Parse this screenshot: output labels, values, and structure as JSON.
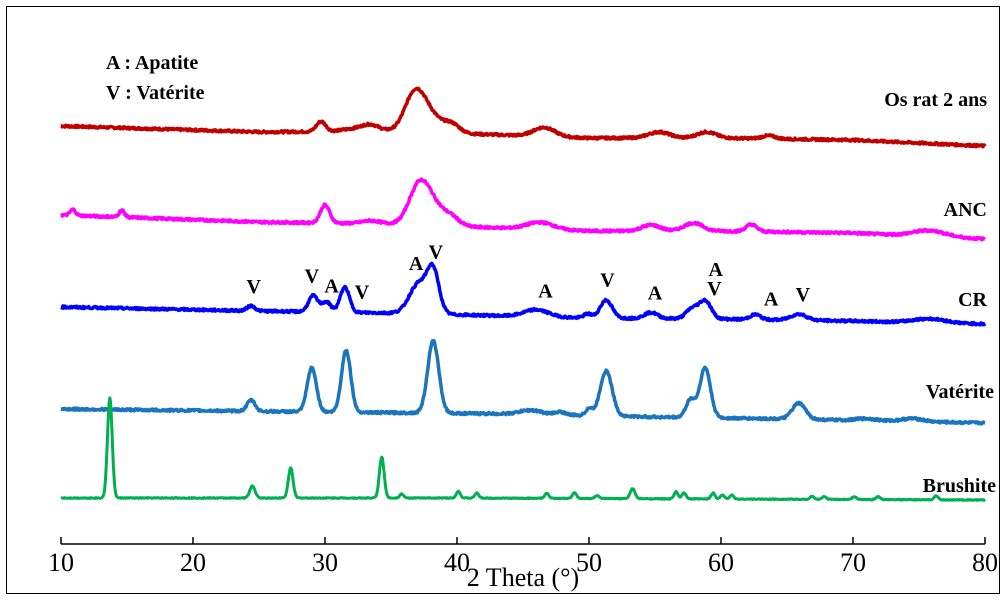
{
  "chart_data": {
    "type": "line",
    "title": "",
    "xlabel": "2 Theta (°)",
    "ylabel": "",
    "xlim": [
      10,
      80
    ],
    "x_ticks": [
      10,
      20,
      30,
      40,
      50,
      60,
      70,
      80
    ],
    "x_tick_labels": [
      "10",
      "20",
      "30",
      "40",
      "50",
      "60",
      "70",
      "80"
    ],
    "grid": false,
    "legend_text": [
      "A : Apatite",
      "V : Vatérite"
    ],
    "series": [
      {
        "name": "Os rat 2 ans",
        "color": "#c00000",
        "baseline": [
          [
            10,
            0.0
          ],
          [
            25,
            -0.6
          ],
          [
            35,
            -0.5
          ],
          [
            50,
            -1.2
          ],
          [
            60,
            -1.2
          ],
          [
            70,
            -1.4
          ],
          [
            80,
            -2.0
          ]
        ],
        "peaks": [
          [
            29.7,
            1.0,
            0.35
          ],
          [
            32.5,
            0.3,
            1.0
          ],
          [
            33.5,
            0.5,
            0.6
          ],
          [
            36.8,
            3.8,
            0.75
          ],
          [
            38.0,
            1.5,
            0.8
          ],
          [
            39.6,
            0.9,
            0.6
          ],
          [
            46.6,
            0.9,
            0.8
          ],
          [
            55.3,
            0.6,
            0.8
          ],
          [
            58.9,
            0.6,
            0.7
          ],
          [
            63.6,
            0.3,
            0.5
          ]
        ]
      },
      {
        "name": "ANC",
        "color": "#ff00ff",
        "baseline": [
          [
            10,
            0.0
          ],
          [
            25,
            -0.7
          ],
          [
            35,
            -0.9
          ],
          [
            50,
            -1.6
          ],
          [
            60,
            -1.6
          ],
          [
            70,
            -1.8
          ],
          [
            80,
            -2.4
          ]
        ],
        "peaks": [
          [
            10.9,
            0.6,
            0.2
          ],
          [
            14.6,
            0.7,
            0.2
          ],
          [
            30.0,
            1.8,
            0.35
          ],
          [
            33.5,
            0.3,
            0.7
          ],
          [
            37.1,
            3.7,
            0.75
          ],
          [
            38.2,
            1.8,
            0.8
          ],
          [
            39.6,
            0.8,
            0.6
          ],
          [
            46.3,
            0.7,
            1.0
          ],
          [
            54.7,
            0.6,
            0.7
          ],
          [
            57.9,
            0.8,
            0.7
          ],
          [
            62.3,
            0.7,
            0.4
          ],
          [
            75.8,
            0.6,
            1.2
          ]
        ]
      },
      {
        "name": "CR",
        "color": "#0000ff",
        "baseline": [
          [
            10,
            0.0
          ],
          [
            25,
            -0.4
          ],
          [
            35,
            -0.6
          ],
          [
            50,
            -1.1
          ],
          [
            60,
            -1.2
          ],
          [
            70,
            -1.4
          ],
          [
            80,
            -1.7
          ]
        ],
        "peaks": [
          [
            24.4,
            0.5,
            0.3
          ],
          [
            29.1,
            1.6,
            0.35
          ],
          [
            30.1,
            1.0,
            0.35
          ],
          [
            31.5,
            2.5,
            0.35
          ],
          [
            37.1,
            3.0,
            0.7
          ],
          [
            38.2,
            4.0,
            0.45
          ],
          [
            46.0,
            0.7,
            0.9
          ],
          [
            49.9,
            0.4,
            0.3
          ],
          [
            51.3,
            1.8,
            0.45
          ],
          [
            54.7,
            0.6,
            0.5
          ],
          [
            57.8,
            1.0,
            0.45
          ],
          [
            58.8,
            1.8,
            0.45
          ],
          [
            62.6,
            0.5,
            0.4
          ],
          [
            65.9,
            0.6,
            0.6
          ],
          [
            75.8,
            0.4,
            1.2
          ]
        ]
      },
      {
        "name": "Vatérite",
        "color": "#1b74be",
        "baseline": [
          [
            10,
            0.0
          ],
          [
            30,
            -0.3
          ],
          [
            45,
            -0.5
          ],
          [
            55,
            -0.8
          ],
          [
            65,
            -1.0
          ],
          [
            80,
            -1.4
          ]
        ],
        "peaks": [
          [
            24.4,
            1.1,
            0.3
          ],
          [
            29.0,
            4.4,
            0.35
          ],
          [
            31.6,
            6.2,
            0.35
          ],
          [
            38.2,
            7.2,
            0.42
          ],
          [
            45.6,
            0.4,
            0.8
          ],
          [
            47.8,
            0.3,
            0.4
          ],
          [
            50.0,
            0.7,
            0.25
          ],
          [
            51.3,
            4.5,
            0.45
          ],
          [
            57.7,
            1.8,
            0.35
          ],
          [
            58.8,
            5.0,
            0.4
          ],
          [
            65.9,
            1.6,
            0.5
          ],
          [
            71.0,
            0.2,
            0.8
          ],
          [
            74.5,
            0.3,
            0.8
          ]
        ]
      },
      {
        "name": "Brushite",
        "color": "#00b050",
        "baseline": [
          [
            10,
            0.0
          ],
          [
            40,
            0.0
          ],
          [
            80,
            -0.2
          ]
        ],
        "peaks": [
          [
            13.7,
            10.0,
            0.18
          ],
          [
            24.5,
            1.2,
            0.2
          ],
          [
            27.4,
            3.0,
            0.18
          ],
          [
            34.3,
            4.1,
            0.18
          ],
          [
            35.8,
            0.4,
            0.15
          ],
          [
            40.1,
            0.7,
            0.15
          ],
          [
            41.5,
            0.5,
            0.15
          ],
          [
            46.8,
            0.5,
            0.15
          ],
          [
            48.9,
            0.6,
            0.15
          ],
          [
            50.6,
            0.3,
            0.15
          ],
          [
            53.3,
            1.0,
            0.18
          ],
          [
            56.6,
            0.7,
            0.15
          ],
          [
            57.2,
            0.6,
            0.15
          ],
          [
            59.4,
            0.6,
            0.15
          ],
          [
            60.1,
            0.4,
            0.15
          ],
          [
            60.8,
            0.4,
            0.15
          ],
          [
            66.9,
            0.3,
            0.15
          ],
          [
            67.8,
            0.3,
            0.15
          ],
          [
            70.1,
            0.3,
            0.15
          ],
          [
            71.9,
            0.3,
            0.15
          ],
          [
            76.3,
            0.4,
            0.15
          ]
        ]
      }
    ],
    "annotations": [
      {
        "text": "V",
        "x": 24.6,
        "series": "CR"
      },
      {
        "text": "V",
        "x": 29.0,
        "series": "CR"
      },
      {
        "text": "A",
        "x": 30.5,
        "series": "CR"
      },
      {
        "text": "V",
        "x": 32.8,
        "series": "CR"
      },
      {
        "text": "A",
        "x": 36.9,
        "series": "CR"
      },
      {
        "text": "V",
        "x": 38.4,
        "series": "CR"
      },
      {
        "text": "A",
        "x": 46.7,
        "series": "CR"
      },
      {
        "text": "V",
        "x": 51.4,
        "series": "CR"
      },
      {
        "text": "A",
        "x": 55.0,
        "series": "CR"
      },
      {
        "text": "A",
        "x": 59.6,
        "series": "CR"
      },
      {
        "text": "V",
        "x": 59.5,
        "series": "CR"
      },
      {
        "text": "A",
        "x": 63.8,
        "series": "CR"
      },
      {
        "text": "V",
        "x": 66.2,
        "series": "CR"
      }
    ]
  }
}
